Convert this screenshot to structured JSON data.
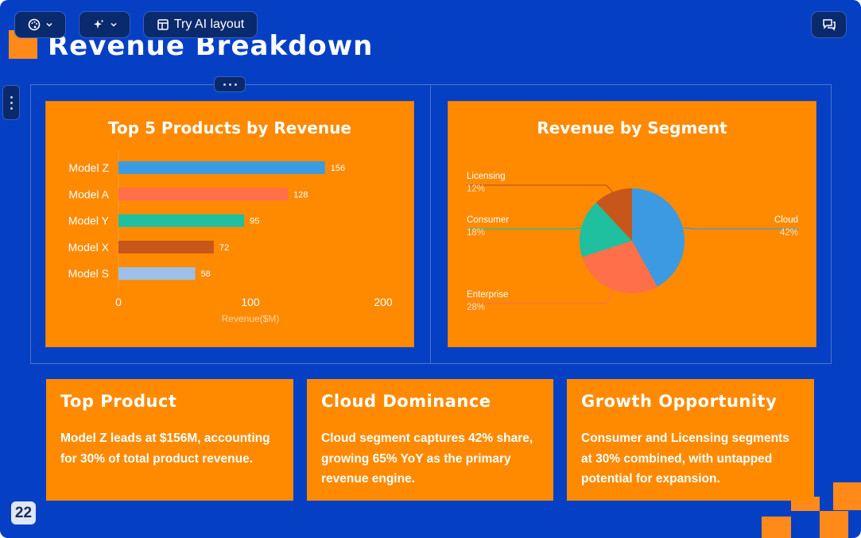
{
  "toolbar": {
    "theme_icon": "palette-icon",
    "ai_icon": "sparkle-icon",
    "ai_layout_label": "Try AI layout",
    "comment_icon": "comment-icon"
  },
  "slide": {
    "title": "Revenue Breakdown",
    "page_number": "22"
  },
  "bar_chart": {
    "title": "Top 5 Products by Revenue",
    "xlabel": "Revenue($M)",
    "ticks": [
      "0",
      "100",
      "200"
    ]
  },
  "pie_chart": {
    "title": "Revenue by Segment"
  },
  "chart_data": [
    {
      "type": "bar",
      "orientation": "horizontal",
      "title": "Top 5 Products by Revenue",
      "xlabel": "Revenue($M)",
      "xlim": [
        0,
        200
      ],
      "categories": [
        "Model Z",
        "Model A",
        "Model Y",
        "Model X",
        "Model S"
      ],
      "values": [
        156,
        128,
        95,
        72,
        58
      ],
      "colors": [
        "#3b9ae1",
        "#ff6f4a",
        "#1fbf9f",
        "#c7561a",
        "#9cc0ea"
      ]
    },
    {
      "type": "pie",
      "title": "Revenue by Segment",
      "slices": [
        {
          "label": "Cloud",
          "value": 42,
          "pct": "42%",
          "color": "#3b9ae1"
        },
        {
          "label": "Enterprise",
          "value": 28,
          "pct": "28%",
          "color": "#ff6f4a"
        },
        {
          "label": "Consumer",
          "value": 18,
          "pct": "18%",
          "color": "#1fbf9f"
        },
        {
          "label": "Licensing",
          "value": 12,
          "pct": "12%",
          "color": "#c7561a"
        }
      ]
    }
  ],
  "cards": [
    {
      "title": "Top Product",
      "body": "Model Z leads at $156M, accounting for 30% of total product revenue."
    },
    {
      "title": "Cloud Dominance",
      "body": "Cloud segment captures 42% share, growing 65% YoY as the primary revenue engine."
    },
    {
      "title": "Growth Opportunity",
      "body": "Consumer and Licensing segments at 30% combined, with untapped potential for expansion."
    }
  ]
}
